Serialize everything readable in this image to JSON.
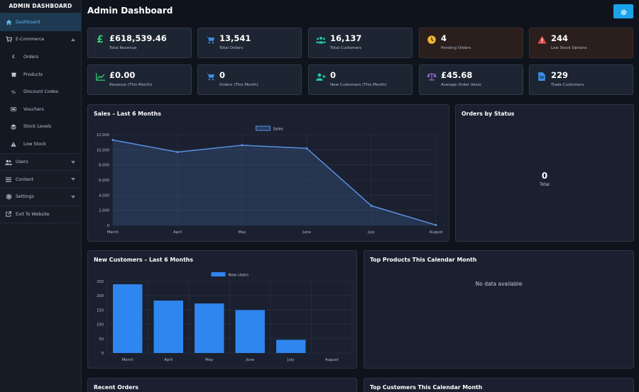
{
  "sidebar": {
    "brand": "ADMIN DASHBOARD",
    "items": [
      {
        "label": "Dashboard",
        "icon": "house-icon",
        "name": "sidebar-item-dashboard"
      },
      {
        "label": "E-Commerce",
        "icon": "cart-icon",
        "name": "sidebar-item-e-commerce"
      },
      {
        "label": "Orders",
        "icon": "pound-icon",
        "name": "sidebar-item-orders"
      },
      {
        "label": "Products",
        "icon": "box-icon",
        "name": "sidebar-item-products"
      },
      {
        "label": "Discount Codes",
        "icon": "percent-icon",
        "name": "sidebar-item-discount-codes"
      },
      {
        "label": "Vouchers",
        "icon": "ticket-icon",
        "name": "sidebar-item-vouchers"
      },
      {
        "label": "Stock Levels",
        "icon": "layers-icon",
        "name": "sidebar-item-stock-levels"
      },
      {
        "label": "Low Stock",
        "icon": "warning-icon",
        "name": "sidebar-item-low-stock"
      },
      {
        "label": "Users",
        "icon": "users-icon",
        "name": "sidebar-item-users"
      },
      {
        "label": "Content",
        "icon": "list-icon",
        "name": "sidebar-item-content"
      },
      {
        "label": "Settings",
        "icon": "gear-icon",
        "name": "sidebar-item-settings"
      },
      {
        "label": "Exit To Website",
        "icon": "external-link-icon",
        "name": "sidebar-item-exit"
      }
    ]
  },
  "header": {
    "title": "Admin Dashboard",
    "settings_icon": "gear-icon"
  },
  "stats": [
    {
      "value": "£618,539.46",
      "label": "Total Revenue",
      "icon": "pound-icon",
      "color": "#2ecc71"
    },
    {
      "value": "13,541",
      "label": "Total Orders",
      "icon": "cart-icon",
      "color": "#3b8ee8"
    },
    {
      "value": "16,137",
      "label": "Total Customers",
      "icon": "users-icon",
      "color": "#1fc8a8"
    },
    {
      "value": "4",
      "label": "Pending Orders",
      "icon": "clock-icon",
      "color": "#f2b632"
    },
    {
      "value": "244",
      "label": "Low Stock Options",
      "icon": "warning-icon",
      "color": "#e54b4b"
    },
    {
      "value": "£0.00",
      "label": "Revenue (This Month)",
      "icon": "chart-line-icon",
      "color": "#2ecc71"
    },
    {
      "value": "0",
      "label": "Orders (This Month)",
      "icon": "cart-icon",
      "color": "#3b8ee8"
    },
    {
      "value": "0",
      "label": "New Customers (This Month)",
      "icon": "user-plus-icon",
      "color": "#1fc8a8"
    },
    {
      "value": "£45.68",
      "label": "Average Order Value",
      "icon": "scale-icon",
      "color": "#9b6ce0"
    },
    {
      "value": "229",
      "label": "Trade Customers",
      "icon": "document-icon",
      "color": "#3b8ee8"
    }
  ],
  "panels": {
    "sales": {
      "title": "Sales – Last 6 Months"
    },
    "orders_status": {
      "title": "Orders by Status",
      "total_value": "0",
      "total_label": "Total"
    },
    "new_customers": {
      "title": "New Customers – Last 6 Months"
    },
    "top_products": {
      "title": "Top Products This Calendar Month",
      "empty_text": "No data available"
    },
    "recent_orders": {
      "title": "Recent Orders"
    },
    "top_customers": {
      "title": "Top Customers This Calendar Month"
    }
  },
  "chart_data": [
    {
      "type": "area",
      "categories": [
        "March",
        "April",
        "May",
        "June",
        "July",
        "August"
      ],
      "series": [
        {
          "name": "Sales",
          "values": [
            11300,
            9700,
            10600,
            10200,
            2600,
            50
          ]
        }
      ],
      "ylim": [
        0,
        12000
      ],
      "yticks": [
        "0",
        "2,000",
        "4,000",
        "6,000",
        "8,000",
        "10,000",
        "12,000"
      ],
      "ytick_values": [
        0,
        2000,
        4000,
        6000,
        8000,
        10000,
        12000
      ],
      "legend": "top",
      "grid": true,
      "color": "#5b8fe0"
    },
    {
      "type": "bar",
      "categories": [
        "March",
        "April",
        "May",
        "June",
        "July",
        "August"
      ],
      "series": [
        {
          "name": "New Users",
          "values": [
            240,
            183,
            173,
            150,
            46,
            0
          ]
        }
      ],
      "ylim": [
        0,
        250
      ],
      "yticks": [
        "0",
        "50",
        "100",
        "150",
        "200",
        "250"
      ],
      "ytick_values": [
        0,
        50,
        100,
        150,
        200,
        250
      ],
      "legend": "top",
      "grid": true,
      "color": "#2f86ee"
    }
  ]
}
